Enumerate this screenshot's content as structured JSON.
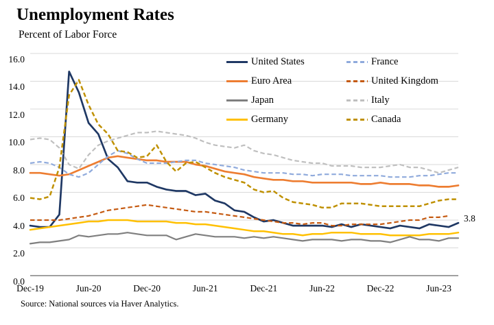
{
  "header": {
    "title": "Unemployment Rates",
    "subtitle": "Percent of Labor Force"
  },
  "source_note": "Source: National sources via Haver Analytics.",
  "end_label": {
    "text": "3.8",
    "refers_to": "United States latest value"
  },
  "chart_data": {
    "type": "line",
    "title": "Unemployment Rates",
    "ylabel": "Percent of Labor Force",
    "xlabel": "",
    "ylim": [
      0,
      16
    ],
    "ytick_labels": [
      "0.0",
      "2.0",
      "4.0",
      "6.0",
      "8.0",
      "10.0",
      "12.0",
      "14.0",
      "16.0"
    ],
    "xtick_labels": [
      "Dec-19",
      "Jun-20",
      "Dec-20",
      "Jun-21",
      "Dec-21",
      "Jun-22",
      "Dec-22",
      "Jun-23"
    ],
    "xtick_positions": [
      0,
      6,
      12,
      18,
      24,
      30,
      36,
      42
    ],
    "n_points": 45,
    "x_unit": "month",
    "grid": "horizontal",
    "legend_position": "top-right-inside",
    "grid_color": "#d9d9d9",
    "axis_color": "#808080",
    "legend_columns": [
      [
        "United States",
        "Euro Area",
        "Japan",
        "Germany"
      ],
      [
        "France",
        "United Kingdom",
        "Italy",
        "Canada"
      ]
    ],
    "series": [
      {
        "name": "United States",
        "color": "#1f3864",
        "line_style": "solid",
        "width": 2.7,
        "values": [
          3.6,
          3.5,
          3.5,
          4.4,
          14.7,
          13.2,
          11.0,
          10.2,
          8.4,
          7.8,
          6.8,
          6.7,
          6.7,
          6.4,
          6.2,
          6.1,
          6.1,
          5.8,
          5.9,
          5.4,
          5.2,
          4.7,
          4.6,
          4.2,
          3.9,
          4.0,
          3.8,
          3.6,
          3.6,
          3.6,
          3.6,
          3.5,
          3.7,
          3.5,
          3.7,
          3.6,
          3.5,
          3.4,
          3.6,
          3.5,
          3.4,
          3.7,
          3.6,
          3.5,
          3.8
        ]
      },
      {
        "name": "Euro Area",
        "color": "#ed7d31",
        "line_style": "solid",
        "width": 2.7,
        "values": [
          7.4,
          7.4,
          7.3,
          7.2,
          7.3,
          7.6,
          7.9,
          8.2,
          8.5,
          8.6,
          8.5,
          8.4,
          8.3,
          8.3,
          8.2,
          8.2,
          8.2,
          8.0,
          7.9,
          7.7,
          7.5,
          7.4,
          7.3,
          7.1,
          7.0,
          6.9,
          6.9,
          6.8,
          6.8,
          6.7,
          6.7,
          6.7,
          6.7,
          6.7,
          6.6,
          6.6,
          6.7,
          6.6,
          6.6,
          6.6,
          6.5,
          6.5,
          6.4,
          6.4,
          6.5
        ]
      },
      {
        "name": "Japan",
        "color": "#7f7f7f",
        "line_style": "solid",
        "width": 2.2,
        "values": [
          2.3,
          2.4,
          2.4,
          2.5,
          2.6,
          2.9,
          2.8,
          2.9,
          3.0,
          3.0,
          3.1,
          3.0,
          2.9,
          2.9,
          2.9,
          2.6,
          2.8,
          3.0,
          2.9,
          2.8,
          2.8,
          2.8,
          2.7,
          2.8,
          2.7,
          2.8,
          2.7,
          2.6,
          2.5,
          2.6,
          2.6,
          2.6,
          2.5,
          2.6,
          2.6,
          2.5,
          2.5,
          2.4,
          2.6,
          2.8,
          2.6,
          2.6,
          2.5,
          2.7,
          2.7
        ]
      },
      {
        "name": "Germany",
        "color": "#ffc000",
        "line_style": "solid",
        "width": 2.5,
        "values": [
          3.3,
          3.4,
          3.5,
          3.6,
          3.7,
          3.8,
          3.9,
          3.9,
          4.0,
          4.0,
          4.0,
          3.9,
          3.9,
          3.9,
          3.9,
          3.8,
          3.8,
          3.7,
          3.7,
          3.6,
          3.5,
          3.4,
          3.3,
          3.2,
          3.2,
          3.1,
          3.0,
          3.0,
          2.9,
          3.0,
          3.0,
          3.1,
          3.1,
          3.1,
          3.0,
          3.0,
          3.0,
          2.9,
          2.9,
          2.9,
          2.9,
          3.0,
          3.0,
          3.0,
          3.1
        ]
      },
      {
        "name": "France",
        "color": "#8faadc",
        "line_style": "dashed",
        "width": 2.2,
        "values": [
          8.1,
          8.2,
          8.1,
          7.8,
          7.3,
          7.1,
          7.4,
          8.0,
          8.6,
          9.0,
          8.8,
          8.4,
          8.1,
          8.1,
          8.1,
          8.2,
          8.3,
          8.3,
          8.1,
          8.0,
          7.9,
          7.8,
          7.6,
          7.5,
          7.4,
          7.4,
          7.4,
          7.3,
          7.3,
          7.2,
          7.3,
          7.3,
          7.3,
          7.2,
          7.2,
          7.2,
          7.2,
          7.1,
          7.1,
          7.1,
          7.2,
          7.2,
          7.3,
          7.4,
          7.4
        ]
      },
      {
        "name": "United Kingdom",
        "color": "#c55a11",
        "line_style": "dashed",
        "width": 2.2,
        "values": [
          4.0,
          4.0,
          4.0,
          4.0,
          4.1,
          4.2,
          4.3,
          4.5,
          4.7,
          4.8,
          4.9,
          5.0,
          5.1,
          5.0,
          4.9,
          4.8,
          4.7,
          4.6,
          4.6,
          4.5,
          4.4,
          4.3,
          4.2,
          4.1,
          4.0,
          3.9,
          3.8,
          3.8,
          3.7,
          3.8,
          3.8,
          3.6,
          3.6,
          3.7,
          3.7,
          3.7,
          3.7,
          3.8,
          3.9,
          4.0,
          4.0,
          4.2,
          4.2,
          4.3,
          null
        ]
      },
      {
        "name": "Italy",
        "color": "#bfbfbf",
        "line_style": "dashed",
        "width": 2.2,
        "values": [
          9.8,
          9.9,
          9.8,
          9.2,
          8.0,
          7.7,
          8.7,
          9.4,
          9.7,
          9.9,
          10.1,
          10.3,
          10.3,
          10.4,
          10.3,
          10.2,
          10.1,
          9.9,
          9.6,
          9.4,
          9.3,
          9.2,
          9.4,
          9.0,
          8.8,
          8.7,
          8.5,
          8.3,
          8.2,
          8.1,
          8.1,
          7.9,
          7.9,
          7.9,
          7.8,
          7.8,
          7.8,
          7.9,
          8.0,
          7.8,
          7.8,
          7.6,
          7.4,
          7.6,
          7.8
        ]
      },
      {
        "name": "Canada",
        "color": "#bf9000",
        "line_style": "dashed",
        "width": 2.5,
        "values": [
          5.6,
          5.5,
          5.7,
          7.8,
          13.0,
          14.1,
          12.3,
          10.9,
          10.2,
          9.0,
          8.9,
          8.5,
          8.6,
          9.4,
          8.2,
          7.5,
          8.1,
          8.2,
          7.8,
          7.4,
          7.1,
          6.9,
          6.7,
          6.2,
          6.0,
          6.1,
          5.6,
          5.3,
          5.2,
          5.1,
          4.9,
          4.9,
          5.2,
          5.2,
          5.2,
          5.1,
          5.0,
          5.0,
          5.0,
          5.0,
          5.0,
          5.2,
          5.4,
          5.5,
          5.5
        ]
      }
    ]
  }
}
